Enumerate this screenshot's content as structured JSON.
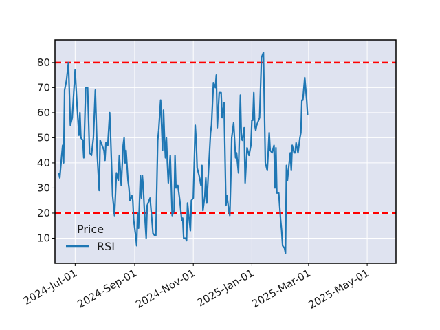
{
  "chart_data": {
    "type": "line",
    "title": "",
    "xlabel": "",
    "ylabel": "",
    "legend": {
      "title": "Price",
      "placement": "lower-left"
    },
    "grid": true,
    "xlim": [
      "2024-06-10",
      "2025-05-31"
    ],
    "ylim": [
      0,
      89
    ],
    "x_ticks": [
      "2024-Jul-01",
      "2024-Sep-01",
      "2024-Nov-01",
      "2025-Jan-01",
      "2025-Mar-01",
      "2025-May-01"
    ],
    "x_tick_dates": [
      "2024-07-01",
      "2024-09-01",
      "2024-11-01",
      "2025-01-01",
      "2025-03-01",
      "2025-05-01"
    ],
    "y_ticks": [
      10,
      20,
      30,
      40,
      50,
      60,
      70,
      80
    ],
    "reference_lines": [
      {
        "y": 80,
        "color": "#ff0000",
        "style": "dashed"
      },
      {
        "y": 20,
        "color": "#ff0000",
        "style": "dashed"
      }
    ],
    "colors": {
      "series": "#1f77b4",
      "plot_background": "#dfe3f0"
    },
    "series": [
      {
        "name": "RSI",
        "points": [
          [
            "2024-06-14",
            36
          ],
          [
            "2024-06-15",
            34
          ],
          [
            "2024-06-17",
            43
          ],
          [
            "2024-06-18",
            47
          ],
          [
            "2024-06-19",
            40
          ],
          [
            "2024-06-20",
            69
          ],
          [
            "2024-06-22",
            73
          ],
          [
            "2024-06-24",
            80
          ],
          [
            "2024-06-26",
            55
          ],
          [
            "2024-06-28",
            58
          ],
          [
            "2024-07-01",
            77
          ],
          [
            "2024-07-03",
            63
          ],
          [
            "2024-07-05",
            51
          ],
          [
            "2024-07-06",
            60
          ],
          [
            "2024-07-07",
            50
          ],
          [
            "2024-07-09",
            49
          ],
          [
            "2024-07-10",
            42
          ],
          [
            "2024-07-12",
            70
          ],
          [
            "2024-07-14",
            70
          ],
          [
            "2024-07-16",
            44
          ],
          [
            "2024-07-18",
            43
          ],
          [
            "2024-07-20",
            50
          ],
          [
            "2024-07-22",
            69
          ],
          [
            "2024-07-24",
            43
          ],
          [
            "2024-07-26",
            29
          ],
          [
            "2024-07-27",
            49
          ],
          [
            "2024-07-29",
            47
          ],
          [
            "2024-07-31",
            45
          ],
          [
            "2024-08-01",
            41
          ],
          [
            "2024-08-02",
            48
          ],
          [
            "2024-08-04",
            47
          ],
          [
            "2024-08-06",
            60
          ],
          [
            "2024-08-07",
            50
          ],
          [
            "2024-08-09",
            27
          ],
          [
            "2024-08-11",
            19
          ],
          [
            "2024-08-13",
            36
          ],
          [
            "2024-08-15",
            33
          ],
          [
            "2024-08-16",
            43
          ],
          [
            "2024-08-18",
            31
          ],
          [
            "2024-08-20",
            47
          ],
          [
            "2024-08-21",
            50
          ],
          [
            "2024-08-22",
            40
          ],
          [
            "2024-08-23",
            45
          ],
          [
            "2024-08-25",
            33
          ],
          [
            "2024-08-26",
            30
          ],
          [
            "2024-08-27",
            25
          ],
          [
            "2024-08-29",
            27
          ],
          [
            "2024-08-30",
            25
          ],
          [
            "2024-08-31",
            17
          ],
          [
            "2024-09-02",
            11
          ],
          [
            "2024-09-03",
            7
          ],
          [
            "2024-09-04",
            20
          ],
          [
            "2024-09-05",
            14
          ],
          [
            "2024-09-07",
            35
          ],
          [
            "2024-09-08",
            26
          ],
          [
            "2024-09-09",
            35
          ],
          [
            "2024-09-10",
            30
          ],
          [
            "2024-09-11",
            22
          ],
          [
            "2024-09-13",
            10
          ],
          [
            "2024-09-14",
            23
          ],
          [
            "2024-09-16",
            25
          ],
          [
            "2024-09-17",
            26
          ],
          [
            "2024-09-19",
            17
          ],
          [
            "2024-09-20",
            12
          ],
          [
            "2024-09-22",
            11
          ],
          [
            "2024-09-23",
            11
          ],
          [
            "2024-09-25",
            49
          ],
          [
            "2024-09-26",
            53
          ],
          [
            "2024-09-28",
            65
          ],
          [
            "2024-09-30",
            45
          ],
          [
            "2024-10-01",
            61
          ],
          [
            "2024-10-02",
            50
          ],
          [
            "2024-10-03",
            42
          ],
          [
            "2024-10-04",
            50
          ],
          [
            "2024-10-05",
            40
          ],
          [
            "2024-10-06",
            32
          ],
          [
            "2024-10-08",
            43
          ],
          [
            "2024-10-10",
            19
          ],
          [
            "2024-10-12",
            21
          ],
          [
            "2024-10-13",
            43
          ],
          [
            "2024-10-14",
            30
          ],
          [
            "2024-10-16",
            31
          ],
          [
            "2024-10-18",
            25
          ],
          [
            "2024-10-20",
            17
          ],
          [
            "2024-10-21",
            18
          ],
          [
            "2024-10-22",
            10
          ],
          [
            "2024-10-24",
            10
          ],
          [
            "2024-10-25",
            9
          ],
          [
            "2024-10-26",
            24
          ],
          [
            "2024-10-27",
            20
          ],
          [
            "2024-10-29",
            13
          ],
          [
            "2024-10-30",
            25
          ],
          [
            "2024-11-01",
            26
          ],
          [
            "2024-11-03",
            55
          ],
          [
            "2024-11-04",
            49
          ],
          [
            "2024-11-05",
            38
          ],
          [
            "2024-11-07",
            35
          ],
          [
            "2024-11-09",
            31
          ],
          [
            "2024-11-10",
            39
          ],
          [
            "2024-11-11",
            21
          ],
          [
            "2024-11-13",
            27
          ],
          [
            "2024-11-14",
            34
          ],
          [
            "2024-11-15",
            24
          ],
          [
            "2024-11-16",
            31
          ],
          [
            "2024-11-19",
            52
          ],
          [
            "2024-11-20",
            55
          ],
          [
            "2024-11-22",
            72
          ],
          [
            "2024-11-24",
            70
          ],
          [
            "2024-11-25",
            75
          ],
          [
            "2024-11-26",
            54
          ],
          [
            "2024-11-28",
            68
          ],
          [
            "2024-11-30",
            68
          ],
          [
            "2024-12-01",
            58
          ],
          [
            "2024-12-03",
            64
          ],
          [
            "2024-12-05",
            23
          ],
          [
            "2024-12-06",
            27
          ],
          [
            "2024-12-08",
            21
          ],
          [
            "2024-12-09",
            19
          ],
          [
            "2024-12-10",
            33
          ],
          [
            "2024-12-11",
            50
          ],
          [
            "2024-12-13",
            56
          ],
          [
            "2024-12-15",
            42
          ],
          [
            "2024-12-16",
            44
          ],
          [
            "2024-12-18",
            36
          ],
          [
            "2024-12-20",
            67
          ],
          [
            "2024-12-21",
            50
          ],
          [
            "2024-12-22",
            49
          ],
          [
            "2024-12-24",
            54
          ],
          [
            "2024-12-25",
            32
          ],
          [
            "2024-12-27",
            46
          ],
          [
            "2024-12-29",
            43
          ],
          [
            "2024-12-31",
            47
          ],
          [
            "2025-01-01",
            57
          ],
          [
            "2025-01-02",
            57
          ],
          [
            "2025-01-03",
            68
          ],
          [
            "2025-01-04",
            55
          ],
          [
            "2025-01-05",
            53
          ],
          [
            "2025-01-06",
            55
          ],
          [
            "2025-01-08",
            57
          ],
          [
            "2025-01-09",
            58
          ],
          [
            "2025-01-11",
            82
          ],
          [
            "2025-01-13",
            84
          ],
          [
            "2025-01-15",
            40
          ],
          [
            "2025-01-17",
            37
          ],
          [
            "2025-01-19",
            52
          ],
          [
            "2025-01-20",
            45
          ],
          [
            "2025-01-22",
            44
          ],
          [
            "2025-01-24",
            47
          ],
          [
            "2025-01-25",
            30
          ],
          [
            "2025-01-26",
            46
          ],
          [
            "2025-01-27",
            28
          ],
          [
            "2025-01-29",
            28
          ],
          [
            "2025-01-31",
            17
          ],
          [
            "2025-02-01",
            13
          ],
          [
            "2025-02-02",
            7
          ],
          [
            "2025-02-04",
            6
          ],
          [
            "2025-02-05",
            4
          ],
          [
            "2025-02-06",
            39
          ],
          [
            "2025-02-07",
            33
          ],
          [
            "2025-02-08",
            37
          ],
          [
            "2025-02-10",
            44
          ],
          [
            "2025-02-11",
            37
          ],
          [
            "2025-02-12",
            47
          ],
          [
            "2025-02-14",
            44
          ],
          [
            "2025-02-15",
            44
          ],
          [
            "2025-02-16",
            48
          ],
          [
            "2025-02-18",
            44
          ],
          [
            "2025-02-20",
            50
          ],
          [
            "2025-02-21",
            52
          ],
          [
            "2025-02-22",
            65
          ],
          [
            "2025-02-23",
            65
          ],
          [
            "2025-02-25",
            74
          ],
          [
            "2025-02-27",
            65
          ],
          [
            "2025-02-28",
            59
          ]
        ]
      }
    ]
  }
}
